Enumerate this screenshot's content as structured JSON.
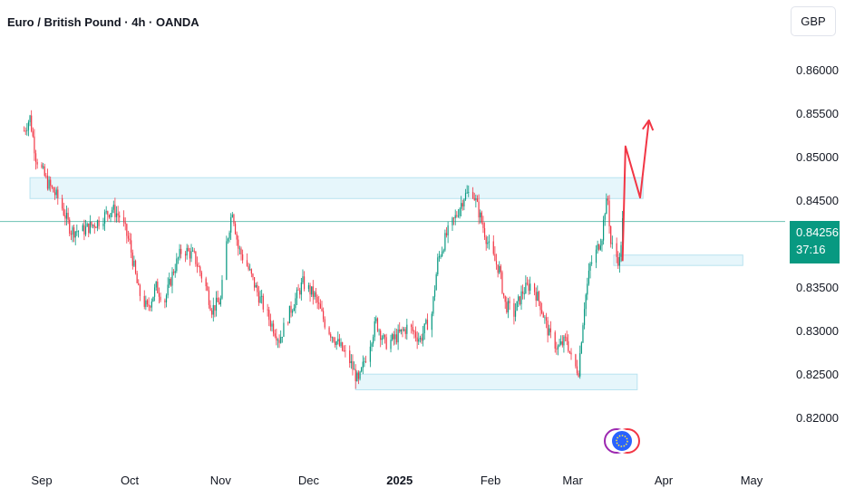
{
  "header": {
    "title": "Euro / British Pound · 4h · OANDA",
    "currency": "GBP"
  },
  "price_label": {
    "price": "0.84256",
    "countdown": "37:16",
    "color": "#089981"
  },
  "colors": {
    "up": "#089981",
    "down": "#f23645",
    "zone_fill": "#e6f6fb",
    "zone_border": "#b9e3f0",
    "arrow": "#f23645"
  },
  "chart_data": {
    "type": "candlestick",
    "symbol": "EURGBP",
    "timeframe": "4h",
    "x_ticks": [
      {
        "label": "Sep",
        "date": "2024-09-01"
      },
      {
        "label": "Oct",
        "date": "2024-10-01"
      },
      {
        "label": "Nov",
        "date": "2024-11-01"
      },
      {
        "label": "Dec",
        "date": "2024-12-01"
      },
      {
        "label": "2025",
        "date": "2025-01-01",
        "bold": true
      },
      {
        "label": "Feb",
        "date": "2025-02-01"
      },
      {
        "label": "Mar",
        "date": "2025-03-01"
      },
      {
        "label": "Apr",
        "date": "2025-04-01"
      },
      {
        "label": "May",
        "date": "2025-05-01"
      }
    ],
    "y_ticks": [
      "0.86000",
      "0.85500",
      "0.85000",
      "0.84500",
      "0.83500",
      "0.83000",
      "0.82500",
      "0.82000"
    ],
    "ylim": [
      0.8145,
      0.8645
    ],
    "last_price": 0.84256,
    "price_path": [
      [
        "2024-08-26",
        0.853
      ],
      [
        "2024-08-28",
        0.8545
      ],
      [
        "2024-08-30",
        0.85
      ],
      [
        "2024-09-03",
        0.847
      ],
      [
        "2024-09-07",
        0.845
      ],
      [
        "2024-09-11",
        0.8415
      ],
      [
        "2024-09-15",
        0.8415
      ],
      [
        "2024-09-20",
        0.8425
      ],
      [
        "2024-09-25",
        0.844
      ],
      [
        "2024-09-28",
        0.843
      ],
      [
        "2024-10-01",
        0.84
      ],
      [
        "2024-10-04",
        0.8345
      ],
      [
        "2024-10-07",
        0.8325
      ],
      [
        "2024-10-10",
        0.835
      ],
      [
        "2024-10-13",
        0.8335
      ],
      [
        "2024-10-16",
        0.837
      ],
      [
        "2024-10-19",
        0.8395
      ],
      [
        "2024-10-23",
        0.8385
      ],
      [
        "2024-10-27",
        0.835
      ],
      [
        "2024-10-29",
        0.8325
      ],
      [
        "2024-11-01",
        0.8335
      ],
      [
        "2024-11-03",
        0.84
      ],
      [
        "2024-11-05",
        0.844
      ],
      [
        "2024-11-07",
        0.8395
      ],
      [
        "2024-11-10",
        0.8375
      ],
      [
        "2024-11-14",
        0.834
      ],
      [
        "2024-11-18",
        0.831
      ],
      [
        "2024-11-21",
        0.829
      ],
      [
        "2024-11-25",
        0.8325
      ],
      [
        "2024-11-29",
        0.8355
      ],
      [
        "2024-12-03",
        0.834
      ],
      [
        "2024-12-07",
        0.8305
      ],
      [
        "2024-12-11",
        0.8285
      ],
      [
        "2024-12-15",
        0.8265
      ],
      [
        "2024-12-18",
        0.824
      ],
      [
        "2024-12-20",
        0.8265
      ],
      [
        "2024-12-24",
        0.831
      ],
      [
        "2024-12-27",
        0.8285
      ],
      [
        "2024-12-30",
        0.829
      ],
      [
        "2025-01-04",
        0.8305
      ],
      [
        "2025-01-08",
        0.829
      ],
      [
        "2025-01-12",
        0.832
      ],
      [
        "2025-01-14",
        0.838
      ],
      [
        "2025-01-17",
        0.841
      ],
      [
        "2025-01-20",
        0.843
      ],
      [
        "2025-01-23",
        0.8455
      ],
      [
        "2025-01-26",
        0.846
      ],
      [
        "2025-01-29",
        0.8425
      ],
      [
        "2025-02-01",
        0.839
      ],
      [
        "2025-02-04",
        0.837
      ],
      [
        "2025-02-06",
        0.833
      ],
      [
        "2025-02-09",
        0.832
      ],
      [
        "2025-02-12",
        0.8345
      ],
      [
        "2025-02-15",
        0.8355
      ],
      [
        "2025-02-18",
        0.833
      ],
      [
        "2025-02-21",
        0.8295
      ],
      [
        "2025-02-24",
        0.828
      ],
      [
        "2025-02-27",
        0.829
      ],
      [
        "2025-03-01",
        0.826
      ],
      [
        "2025-03-03",
        0.8255
      ],
      [
        "2025-03-05",
        0.833
      ],
      [
        "2025-03-07",
        0.8375
      ],
      [
        "2025-03-09",
        0.839
      ],
      [
        "2025-03-11",
        0.841
      ],
      [
        "2025-03-12",
        0.844
      ],
      [
        "2025-03-13",
        0.845
      ],
      [
        "2025-03-14",
        0.84
      ],
      [
        "2025-03-16",
        0.8385
      ],
      [
        "2025-03-17",
        0.838
      ],
      [
        "2025-03-18",
        0.8425
      ]
    ],
    "zones": [
      {
        "x0": "2024-08-28",
        "x1": "2025-03-25",
        "y0": 0.8452,
        "y1": 0.8476
      },
      {
        "x0": "2025-03-15",
        "x1": "2025-04-28",
        "y0": 0.8375,
        "y1": 0.8387
      },
      {
        "x0": "2024-12-17",
        "x1": "2025-03-23",
        "y0": 0.8232,
        "y1": 0.825
      }
    ],
    "projection_path": [
      [
        "2025-03-18",
        0.838
      ],
      [
        "2025-03-19",
        0.8512
      ],
      [
        "2025-03-24",
        0.8453
      ],
      [
        "2025-03-27",
        0.8542
      ]
    ]
  }
}
